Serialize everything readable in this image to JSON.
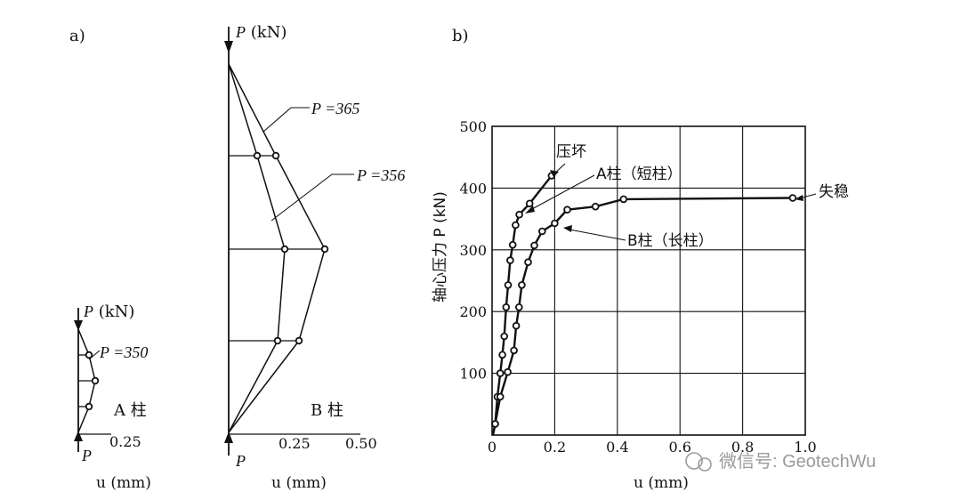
{
  "panels": {
    "a_label": "a)",
    "b_label": "b)"
  },
  "column_a": {
    "axis_title_sym": "P",
    "axis_title_unit": " (kN)",
    "curve_label": "P =350",
    "column_name": "A 柱",
    "bottom_label": "P",
    "tick": "0.25",
    "xlabel": "u (mm)"
  },
  "column_b": {
    "axis_title_sym": "P",
    "axis_title_unit": " (kN)",
    "curve_label_1": "P =365",
    "curve_label_2": "P =356",
    "column_name": "B 柱",
    "bottom_label": "P",
    "ticks": [
      "0.25",
      "0.50"
    ],
    "xlabel": "u (mm)"
  },
  "chart_data": [
    {
      "type": "line",
      "panel": "a",
      "xlabel": "u (mm)",
      "ylabel": "",
      "series": [
        {
          "name": "P=350",
          "x": [
            0,
            0.035,
            0.05,
            0.035,
            0
          ],
          "y": [
            0,
            0.25,
            0.5,
            0.75,
            1
          ]
        }
      ]
    },
    {
      "type": "line",
      "panel": "b",
      "xlabel": "u (mm)",
      "ylabel": "",
      "series": [
        {
          "name": "P =365",
          "x": [
            0,
            0.27,
            0.36,
            0.18,
            0
          ],
          "y": [
            0,
            0.25,
            0.5,
            0.75,
            1
          ]
        },
        {
          "name": "P =356",
          "x": [
            0,
            0.19,
            0.21,
            0.11,
            0
          ],
          "y": [
            0,
            0.25,
            0.5,
            0.75,
            1
          ]
        }
      ]
    },
    {
      "type": "line",
      "panel": "c",
      "xlabel": "u (mm)",
      "ylabel": "轴心压力 P (kN)",
      "xlim": [
        0,
        1.0
      ],
      "ylim": [
        0,
        500
      ],
      "xticks": [
        "0",
        "0.2",
        "0.4",
        "0.6",
        "0.8",
        "1.0"
      ],
      "yticks": [
        "100",
        "200",
        "300",
        "400",
        "500"
      ],
      "grid": true,
      "series": [
        {
          "name": "A柱（短柱）",
          "x": [
            0.01,
            0.017,
            0.026,
            0.033,
            0.039,
            0.045,
            0.051,
            0.058,
            0.066,
            0.075,
            0.087,
            0.12,
            0.19
          ],
          "y": [
            18,
            62,
            100,
            130,
            160,
            207,
            243,
            283,
            308,
            340,
            357,
            375,
            420
          ]
        },
        {
          "name": "B柱（长柱）",
          "x": [
            0.01,
            0.026,
            0.05,
            0.07,
            0.077,
            0.086,
            0.095,
            0.115,
            0.135,
            0.16,
            0.2,
            0.24,
            0.33,
            0.42,
            0.96
          ],
          "y": [
            18,
            62,
            102,
            137,
            177,
            207,
            243,
            280,
            307,
            330,
            343,
            365,
            370,
            382,
            384
          ]
        }
      ],
      "annotations": [
        "压坏",
        "A柱（短柱）",
        "B柱（长柱）",
        "失稳"
      ]
    }
  ],
  "watermark": "微信号: GeotechWu"
}
